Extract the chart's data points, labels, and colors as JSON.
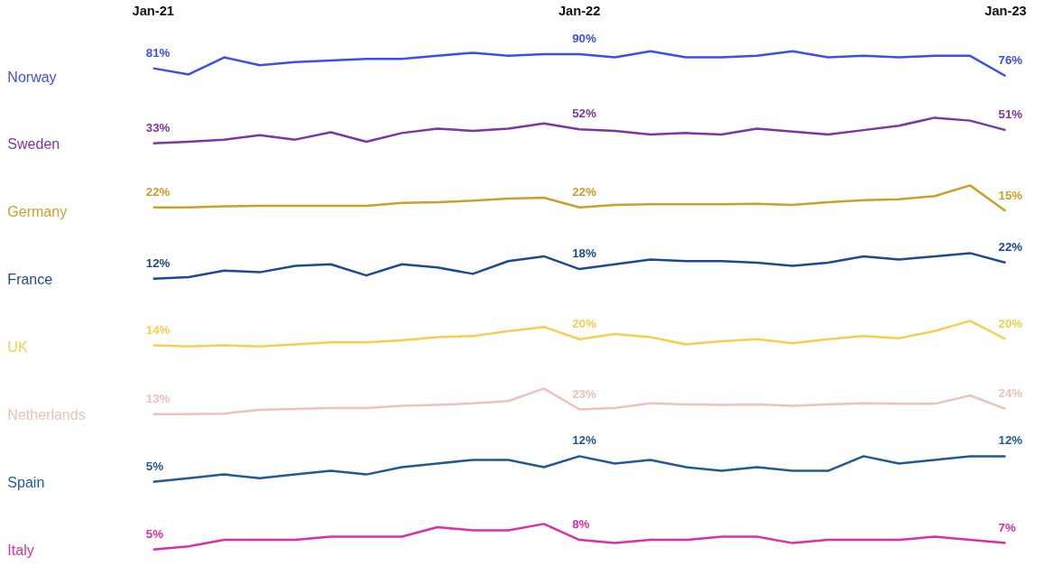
{
  "chart_data": [
    {
      "type": "line",
      "categories": [
        "Jan-21",
        null,
        null,
        null,
        null,
        null,
        null,
        null,
        null,
        null,
        null,
        null,
        "Jan-22",
        null,
        null,
        null,
        null,
        null,
        null,
        null,
        null,
        null,
        null,
        null,
        "Jan-23"
      ],
      "series": [
        {
          "name": "Norway",
          "color": "#3d4fe8",
          "values": [
            81,
            77,
            88,
            83,
            85,
            86,
            87,
            87,
            89,
            91,
            89,
            90,
            90,
            88,
            92,
            88,
            88,
            89,
            92,
            88,
            89,
            88,
            89,
            89,
            76
          ],
          "value_labels": [
            "81%",
            null,
            null,
            null,
            null,
            null,
            null,
            null,
            null,
            null,
            null,
            null,
            "90%",
            null,
            null,
            null,
            null,
            null,
            null,
            null,
            null,
            null,
            null,
            null,
            "76%"
          ]
        }
      ]
    },
    {
      "type": "line",
      "categories": [
        null,
        null,
        null,
        null,
        null,
        null,
        null,
        null,
        null,
        null,
        null,
        null,
        null,
        null,
        null,
        null,
        null,
        null,
        null,
        null,
        null,
        null,
        null,
        null,
        null
      ],
      "tick_labels": false,
      "series": [
        {
          "name": "Sweden",
          "color": "#7b35a5",
          "values": [
            33,
            35,
            38,
            44,
            38,
            48,
            35,
            47,
            53,
            50,
            53,
            60,
            52,
            50,
            45,
            47,
            45,
            53,
            49,
            45,
            51,
            57,
            68,
            64,
            51
          ],
          "value_labels": [
            "33%",
            null,
            null,
            null,
            null,
            null,
            null,
            null,
            null,
            null,
            null,
            null,
            "52%",
            null,
            null,
            null,
            null,
            null,
            null,
            null,
            null,
            null,
            null,
            null,
            "51%"
          ]
        }
      ]
    },
    {
      "type": "line",
      "categories": [
        null,
        null,
        null,
        null,
        null,
        null,
        null,
        null,
        null,
        null,
        null,
        null,
        null,
        null,
        null,
        null,
        null,
        null,
        null,
        null,
        null,
        null,
        null,
        null,
        null
      ],
      "tick_labels": false,
      "series": [
        {
          "name": "Germany",
          "color": "#c9a12a",
          "values": [
            22,
            22,
            24,
            25,
            25,
            25,
            25,
            31,
            32,
            35,
            39,
            41,
            22,
            27,
            28,
            28,
            28,
            29,
            27,
            32,
            36,
            38,
            44,
            65,
            15
          ],
          "value_labels": [
            "22%",
            null,
            null,
            null,
            null,
            null,
            null,
            null,
            null,
            null,
            null,
            null,
            "22%",
            null,
            null,
            null,
            null,
            null,
            null,
            null,
            null,
            null,
            null,
            null,
            "15%"
          ]
        }
      ]
    },
    {
      "type": "line",
      "categories": [
        null,
        null,
        null,
        null,
        null,
        null,
        null,
        null,
        null,
        null,
        null,
        null,
        null,
        null,
        null,
        null,
        null,
        null,
        null,
        null,
        null,
        null,
        null,
        null,
        null
      ],
      "tick_labels": false,
      "series": [
        {
          "name": "France",
          "color": "#1b4a92",
          "values": [
            12,
            13,
            17,
            16,
            20,
            21,
            14,
            21,
            19,
            15,
            23,
            26,
            18,
            21,
            24,
            23,
            23,
            22,
            20,
            22,
            26,
            24,
            26,
            28,
            22
          ],
          "value_labels": [
            "12%",
            null,
            null,
            null,
            null,
            null,
            null,
            null,
            null,
            null,
            null,
            null,
            "18%",
            null,
            null,
            null,
            null,
            null,
            null,
            null,
            null,
            null,
            null,
            null,
            "22%"
          ]
        }
      ]
    },
    {
      "type": "line",
      "categories": [
        null,
        null,
        null,
        null,
        null,
        null,
        null,
        null,
        null,
        null,
        null,
        null,
        null,
        null,
        null,
        null,
        null,
        null,
        null,
        null,
        null,
        null,
        null,
        null,
        null
      ],
      "tick_labels": false,
      "series": [
        {
          "name": "UK",
          "color": "#f5cf50",
          "values": [
            14,
            13,
            14,
            13,
            15,
            17,
            17,
            19,
            22,
            23,
            28,
            32,
            20,
            25,
            22,
            15,
            18,
            20,
            16,
            20,
            23,
            21,
            28,
            38,
            20
          ],
          "value_labels": [
            "14%",
            null,
            null,
            null,
            null,
            null,
            null,
            null,
            null,
            null,
            null,
            null,
            "20%",
            null,
            null,
            null,
            null,
            null,
            null,
            null,
            null,
            null,
            null,
            null,
            "20%"
          ]
        }
      ]
    },
    {
      "type": "line",
      "categories": [
        null,
        null,
        null,
        null,
        null,
        null,
        null,
        null,
        null,
        null,
        null,
        null,
        null,
        null,
        null,
        null,
        null,
        null,
        null,
        null,
        null,
        null,
        null,
        null,
        null
      ],
      "tick_labels": false,
      "series": [
        {
          "name": "Netherlands",
          "color": "#ecc2bb",
          "values": [
            13,
            13,
            14,
            22,
            24,
            26,
            26,
            31,
            33,
            36,
            41,
            68,
            23,
            26,
            36,
            34,
            33,
            34,
            31,
            34,
            36,
            35,
            35,
            53,
            24
          ],
          "value_labels": [
            "13%",
            null,
            null,
            null,
            null,
            null,
            null,
            null,
            null,
            null,
            null,
            null,
            "23%",
            null,
            null,
            null,
            null,
            null,
            null,
            null,
            null,
            null,
            null,
            null,
            "24%"
          ]
        }
      ]
    },
    {
      "type": "line",
      "categories": [
        null,
        null,
        null,
        null,
        null,
        null,
        null,
        null,
        null,
        null,
        null,
        null,
        null,
        null,
        null,
        null,
        null,
        null,
        null,
        null,
        null,
        null,
        null,
        null,
        null
      ],
      "tick_labels": false,
      "series": [
        {
          "name": "Spain",
          "color": "#1f5a96",
          "values": [
            5,
            6,
            7,
            6,
            7,
            8,
            7,
            9,
            10,
            11,
            11,
            9,
            12,
            10,
            11,
            9,
            8,
            9,
            8,
            8,
            12,
            10,
            11,
            12,
            12
          ],
          "value_labels": [
            "5%",
            null,
            null,
            null,
            null,
            null,
            null,
            null,
            null,
            null,
            null,
            null,
            "12%",
            null,
            null,
            null,
            null,
            null,
            null,
            null,
            null,
            null,
            null,
            null,
            "12%"
          ]
        }
      ]
    },
    {
      "type": "line",
      "categories": [
        null,
        null,
        null,
        null,
        null,
        null,
        null,
        null,
        null,
        null,
        null,
        null,
        null,
        null,
        null,
        null,
        null,
        null,
        null,
        null,
        null,
        null,
        null,
        null,
        null
      ],
      "tick_labels": false,
      "series": [
        {
          "name": "Italy",
          "color": "#d930a8",
          "values": [
            5,
            6,
            8,
            8,
            8,
            9,
            9,
            9,
            12,
            11,
            11,
            13,
            8,
            7,
            8,
            8,
            9,
            9,
            7,
            8,
            8,
            8,
            9,
            8,
            7
          ],
          "value_labels": [
            "5%",
            null,
            null,
            null,
            null,
            null,
            null,
            null,
            null,
            null,
            null,
            null,
            "8%",
            null,
            null,
            null,
            null,
            null,
            null,
            null,
            null,
            null,
            null,
            null,
            "7%"
          ]
        }
      ]
    }
  ]
}
